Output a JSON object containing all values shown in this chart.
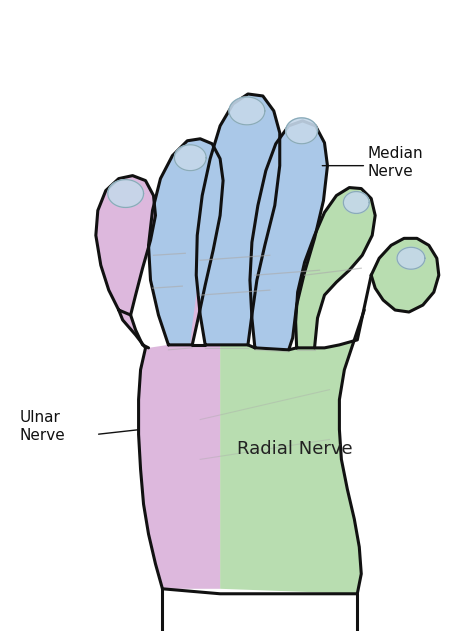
{
  "background_color": "#ffffff",
  "ulnar_color": "#ddb8dd",
  "median_color": "#aac8e8",
  "radial_color": "#b8ddb0",
  "outline_color": "#111111",
  "label_ulnar": "Ulnar\nNerve",
  "label_median": "Median\nNerve",
  "label_radial": "Radial Nerve",
  "label_fontsize": 11,
  "radial_label_fontsize": 13
}
